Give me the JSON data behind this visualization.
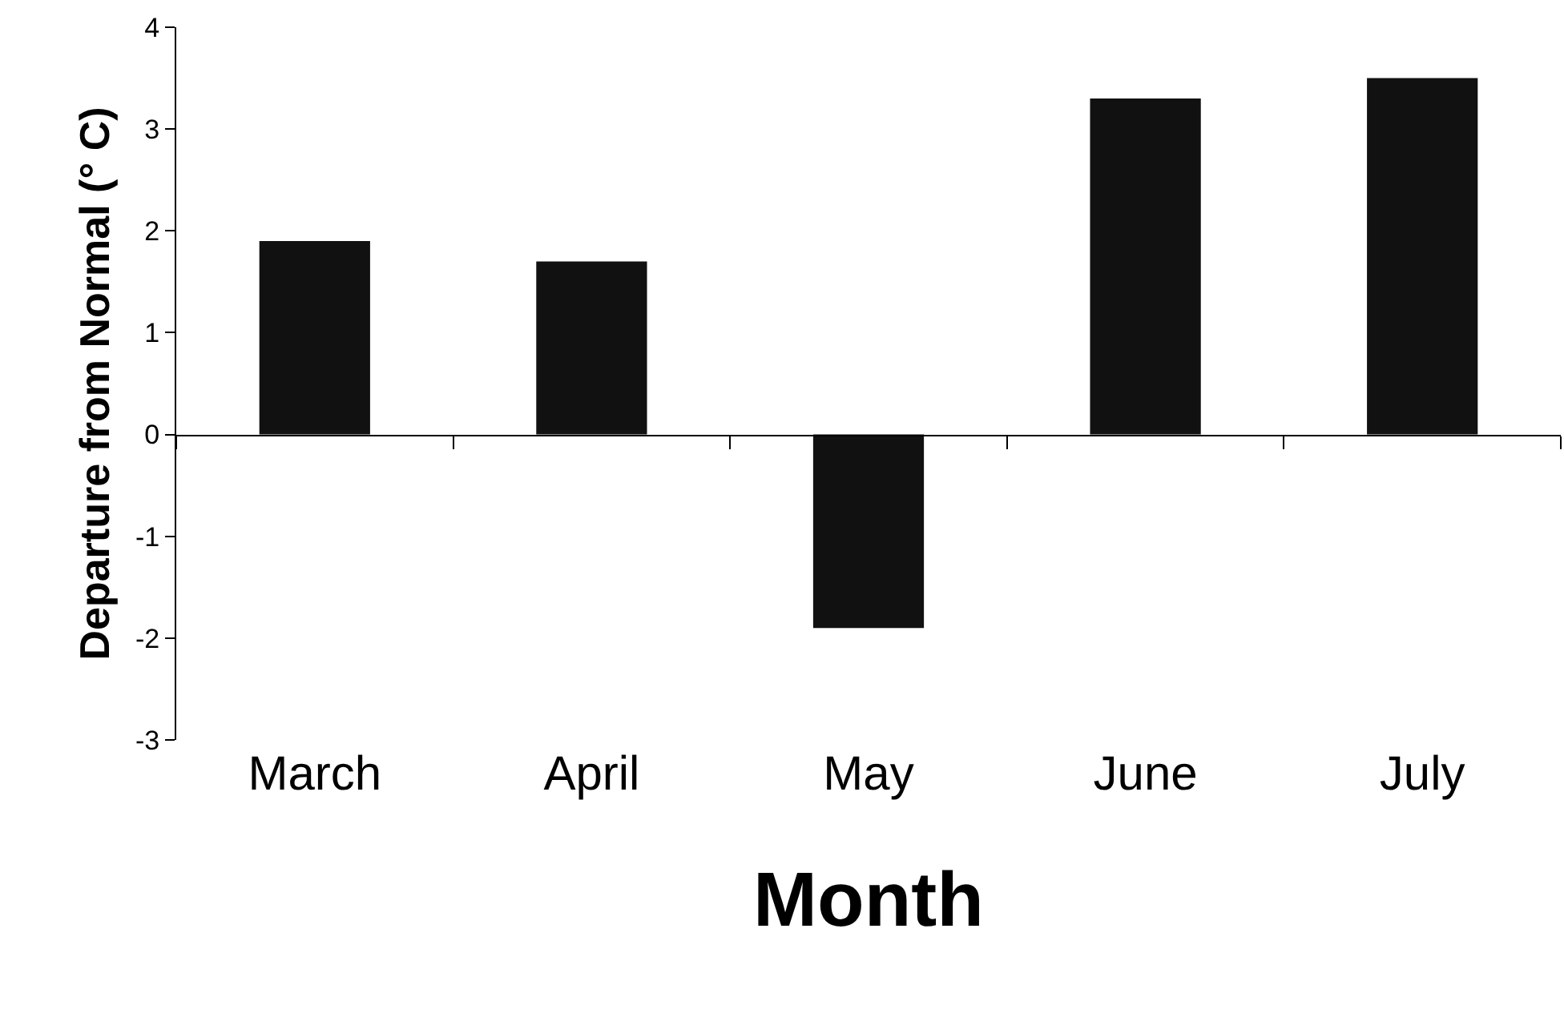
{
  "chart_data": {
    "type": "bar",
    "xlabel": "Month",
    "ylabel": "Departure from Normal (° C)",
    "categories": [
      "March",
      "April",
      "May",
      "June",
      "July"
    ],
    "values": [
      1.9,
      1.7,
      -1.9,
      3.3,
      3.5
    ],
    "color": "#111111",
    "ylim": [
      -3,
      4
    ],
    "yticks": [
      -3,
      -2,
      -1,
      0,
      1,
      2,
      3,
      4
    ],
    "legend": false
  }
}
